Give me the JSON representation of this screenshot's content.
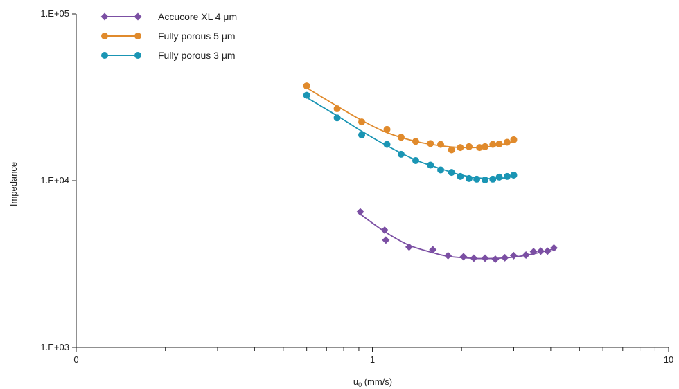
{
  "chart_data": {
    "type": "scatter",
    "title": "",
    "xlabel": "u",
    "xlabel_sub": "0",
    "xlabel_unit": " (mm/s)",
    "ylabel": "Impedance",
    "xscale": "log",
    "yscale": "log",
    "xlim": [
      0.1,
      10
    ],
    "ylim": [
      1000,
      100000
    ],
    "x_tick_labels": [
      {
        "value": 0.1,
        "label": "0"
      },
      {
        "value": 1,
        "label": "1"
      },
      {
        "value": 10,
        "label": "10"
      }
    ],
    "y_tick_labels": [
      {
        "value": 1000,
        "label": "1.E+03"
      },
      {
        "value": 10000,
        "label": "1.E+04"
      },
      {
        "value": 100000,
        "label": "1.E+05"
      }
    ],
    "grid": false,
    "legend_position": "top-left",
    "series": [
      {
        "name": "Accucore XL 4 μm",
        "color": "#7b4fa3",
        "marker": "diamond",
        "points": [
          [
            0.91,
            6500
          ],
          [
            1.1,
            5050
          ],
          [
            1.11,
            4400
          ],
          [
            1.33,
            4000
          ],
          [
            1.6,
            3850
          ],
          [
            1.8,
            3550
          ],
          [
            2.03,
            3500
          ],
          [
            2.2,
            3430
          ],
          [
            2.4,
            3430
          ],
          [
            2.6,
            3380
          ],
          [
            2.8,
            3450
          ],
          [
            3.0,
            3550
          ],
          [
            3.3,
            3580
          ],
          [
            3.5,
            3750
          ],
          [
            3.7,
            3780
          ],
          [
            3.9,
            3780
          ],
          [
            4.1,
            3950
          ]
        ],
        "fit": [
          [
            0.91,
            6300
          ],
          [
            1.1,
            4950
          ],
          [
            1.33,
            4100
          ],
          [
            1.6,
            3700
          ],
          [
            1.8,
            3520
          ],
          [
            2.2,
            3420
          ],
          [
            2.6,
            3420
          ],
          [
            3.0,
            3480
          ],
          [
            3.5,
            3640
          ],
          [
            4.1,
            3900
          ]
        ]
      },
      {
        "name": "Fully porous 5 μm",
        "color": "#e08a2c",
        "marker": "circle",
        "points": [
          [
            0.6,
            37000
          ],
          [
            0.76,
            27000
          ],
          [
            0.92,
            22500
          ],
          [
            1.12,
            20300
          ],
          [
            1.25,
            18200
          ],
          [
            1.4,
            17200
          ],
          [
            1.57,
            16700
          ],
          [
            1.7,
            16500
          ],
          [
            1.85,
            15300
          ],
          [
            1.98,
            15800
          ],
          [
            2.12,
            16000
          ],
          [
            2.3,
            15800
          ],
          [
            2.4,
            16000
          ],
          [
            2.55,
            16500
          ],
          [
            2.68,
            16600
          ],
          [
            2.85,
            17000
          ],
          [
            3.0,
            17600
          ]
        ],
        "fit": [
          [
            0.6,
            36000
          ],
          [
            0.76,
            28000
          ],
          [
            0.92,
            23000
          ],
          [
            1.12,
            19400
          ],
          [
            1.4,
            17200
          ],
          [
            1.7,
            16200
          ],
          [
            2.0,
            15800
          ],
          [
            2.4,
            15900
          ],
          [
            2.8,
            16600
          ],
          [
            3.0,
            17200
          ]
        ]
      },
      {
        "name": "Fully porous 3 μm",
        "color": "#1a95b4",
        "marker": "circle",
        "points": [
          [
            0.6,
            32500
          ],
          [
            0.76,
            23800
          ],
          [
            0.92,
            18800
          ],
          [
            1.12,
            16500
          ],
          [
            1.25,
            14400
          ],
          [
            1.4,
            13200
          ],
          [
            1.57,
            12400
          ],
          [
            1.7,
            11600
          ],
          [
            1.85,
            11200
          ],
          [
            1.98,
            10600
          ],
          [
            2.12,
            10300
          ],
          [
            2.25,
            10200
          ],
          [
            2.4,
            10100
          ],
          [
            2.55,
            10200
          ],
          [
            2.68,
            10500
          ],
          [
            2.85,
            10600
          ],
          [
            3.0,
            10800
          ]
        ],
        "fit": [
          [
            0.6,
            31500
          ],
          [
            0.76,
            24500
          ],
          [
            0.92,
            19800
          ],
          [
            1.12,
            16200
          ],
          [
            1.4,
            13300
          ],
          [
            1.7,
            11800
          ],
          [
            2.0,
            10800
          ],
          [
            2.4,
            10300
          ],
          [
            2.8,
            10400
          ],
          [
            3.0,
            10700
          ]
        ]
      }
    ]
  }
}
